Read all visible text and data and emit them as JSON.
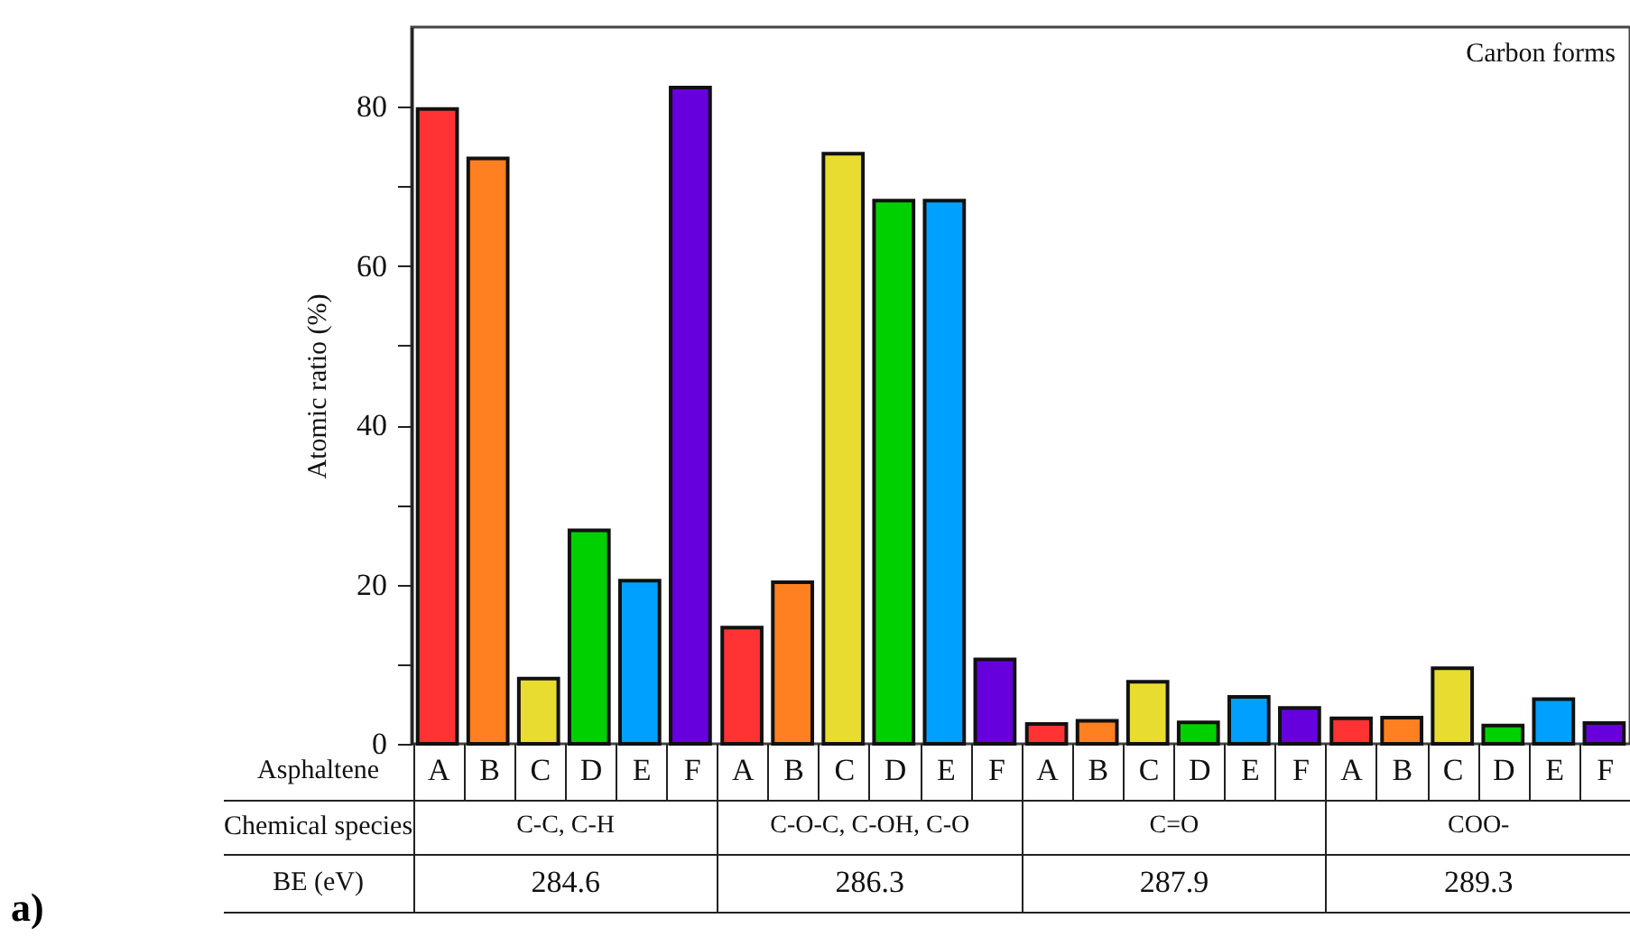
{
  "chart_data": {
    "type": "bar",
    "title": "Carbon forms",
    "ylabel": "Atomic ratio (%)",
    "xlabel": "Chemical species",
    "legend_title": "Asphaltene",
    "categories": [
      "C-C, C-H",
      "C-O-C, C-OH, C-O",
      "C=O",
      "COO-"
    ],
    "series": [
      {
        "name": "A",
        "color": "#ff3333",
        "values": [
          79.7,
          14.6,
          2.5,
          3.2
        ]
      },
      {
        "name": "B",
        "color": "#ff8020",
        "values": [
          73.5,
          20.3,
          2.9,
          3.3
        ]
      },
      {
        "name": "C",
        "color": "#e8dc30",
        "values": [
          8.2,
          74.1,
          7.8,
          9.5
        ]
      },
      {
        "name": "D",
        "color": "#00d000",
        "values": [
          26.8,
          68.2,
          2.7,
          2.3
        ]
      },
      {
        "name": "E",
        "color": "#00a0ff",
        "values": [
          20.5,
          68.2,
          5.9,
          5.6
        ]
      },
      {
        "name": "F",
        "color": "#6600dd",
        "values": [
          82.4,
          10.6,
          4.5,
          2.6
        ]
      }
    ],
    "ylim": [
      0,
      90
    ],
    "yticks": [
      0,
      {
        "value": 10,
        "label": null
      },
      20,
      {
        "value": 30,
        "label": null
      },
      40,
      {
        "value": 50,
        "label": null
      },
      60,
      {
        "value": 70,
        "label": null
      },
      80
    ],
    "grid": false,
    "legend": false,
    "annotations": [
      "BE (eV)",
      "284.6",
      "286.3",
      "287.9",
      "289.3",
      "a)"
    ]
  }
}
